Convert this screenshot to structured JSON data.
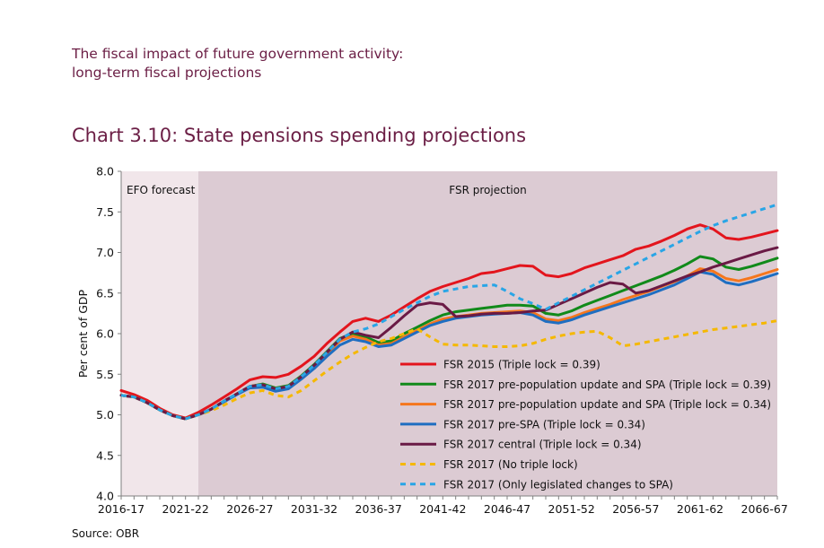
{
  "header": {
    "line1": "The fiscal impact of future government activity:",
    "line2": "long-term fiscal projections"
  },
  "source": "Source: OBR",
  "chart_data": {
    "type": "line",
    "title": "Chart 3.10: State pensions spending projections",
    "xlabel": "",
    "ylabel": "Per cent of GDP",
    "ylim": [
      4.0,
      8.0
    ],
    "yticks": [
      "4.0",
      "4.5",
      "5.0",
      "5.5",
      "6.0",
      "6.5",
      "7.0",
      "7.5",
      "8.0"
    ],
    "xticks": [
      "2016-17",
      "2021-22",
      "2026-27",
      "2031-32",
      "2036-37",
      "2041-42",
      "2046-47",
      "2051-52",
      "2056-57",
      "2061-62",
      "2066-67"
    ],
    "x_years": [
      2016,
      2017,
      2018,
      2019,
      2020,
      2021,
      2022,
      2023,
      2024,
      2025,
      2026,
      2027,
      2028,
      2029,
      2030,
      2031,
      2032,
      2033,
      2034,
      2035,
      2036,
      2037,
      2038,
      2039,
      2040,
      2041,
      2042,
      2043,
      2044,
      2045,
      2046,
      2047,
      2048,
      2049,
      2050,
      2051,
      2052,
      2053,
      2054,
      2055,
      2056,
      2057,
      2058,
      2059,
      2060,
      2061,
      2062,
      2063,
      2064,
      2065,
      2066,
      2067
    ],
    "regions": [
      {
        "label": "EFO forecast",
        "from": 2016,
        "to": 2022,
        "color": "#f1e6ea"
      },
      {
        "label": "FSR projection",
        "from": 2022,
        "to": 2067,
        "color": "#dccbd3"
      }
    ],
    "grid": false,
    "legend_position": "bottom-right",
    "series": [
      {
        "name": "FSR 2015 (Triple lock = 0.39)",
        "color": "#e3151d",
        "dash": false,
        "values": [
          5.3,
          5.25,
          5.18,
          5.08,
          5.0,
          4.96,
          5.03,
          5.12,
          5.22,
          5.32,
          5.43,
          5.47,
          5.46,
          5.5,
          5.6,
          5.72,
          5.88,
          6.02,
          6.15,
          6.19,
          6.15,
          6.23,
          6.33,
          6.43,
          6.52,
          6.58,
          6.63,
          6.68,
          6.74,
          6.76,
          6.8,
          6.84,
          6.83,
          6.72,
          6.7,
          6.74,
          6.81,
          6.86,
          6.91,
          6.96,
          7.04,
          7.08,
          7.14,
          7.21,
          7.29,
          7.34,
          7.29,
          7.18,
          7.16,
          7.19,
          7.23,
          7.27
        ]
      },
      {
        "name": "FSR 2017 pre-population update and SPA (Triple lock = 0.39)",
        "color": "#118a1a",
        "dash": false,
        "values": [
          5.24,
          5.22,
          5.15,
          5.06,
          4.99,
          4.95,
          5.0,
          5.07,
          5.17,
          5.26,
          5.35,
          5.38,
          5.33,
          5.36,
          5.48,
          5.62,
          5.78,
          5.94,
          6.0,
          5.96,
          5.89,
          5.91,
          6.0,
          6.08,
          6.16,
          6.23,
          6.27,
          6.29,
          6.31,
          6.33,
          6.35,
          6.35,
          6.34,
          6.25,
          6.23,
          6.28,
          6.35,
          6.41,
          6.47,
          6.53,
          6.59,
          6.65,
          6.71,
          6.78,
          6.86,
          6.95,
          6.92,
          6.82,
          6.79,
          6.83,
          6.88,
          6.93
        ]
      },
      {
        "name": "FSR 2017 pre-population update and SPA (Triple lock = 0.34)",
        "color": "#f5761c",
        "dash": false,
        "values": [
          5.24,
          5.22,
          5.15,
          5.06,
          4.99,
          4.95,
          5.0,
          5.07,
          5.17,
          5.26,
          5.35,
          5.37,
          5.32,
          5.35,
          5.47,
          5.6,
          5.75,
          5.91,
          5.97,
          5.93,
          5.86,
          5.88,
          5.96,
          6.04,
          6.12,
          6.18,
          6.21,
          6.23,
          6.25,
          6.26,
          6.27,
          6.28,
          6.26,
          6.18,
          6.16,
          6.2,
          6.26,
          6.31,
          6.36,
          6.42,
          6.47,
          6.52,
          6.58,
          6.64,
          6.71,
          6.8,
          6.77,
          6.68,
          6.65,
          6.69,
          6.74,
          6.79
        ]
      },
      {
        "name": "FSR 2017 pre-SPA (Triple lock = 0.34)",
        "color": "#1f6ec1",
        "dash": false,
        "values": [
          5.24,
          5.22,
          5.15,
          5.06,
          4.99,
          4.95,
          5.0,
          5.07,
          5.16,
          5.25,
          5.33,
          5.34,
          5.29,
          5.32,
          5.44,
          5.57,
          5.72,
          5.86,
          5.93,
          5.9,
          5.84,
          5.86,
          5.94,
          6.02,
          6.1,
          6.15,
          6.19,
          6.21,
          6.23,
          6.24,
          6.25,
          6.26,
          6.23,
          6.15,
          6.13,
          6.17,
          6.23,
          6.28,
          6.33,
          6.38,
          6.43,
          6.48,
          6.54,
          6.6,
          6.68,
          6.76,
          6.73,
          6.63,
          6.6,
          6.64,
          6.69,
          6.74
        ]
      },
      {
        "name": "FSR 2017 central (Triple lock = 0.34)",
        "color": "#6a1a45",
        "dash": false,
        "values": [
          5.24,
          5.22,
          5.15,
          5.06,
          4.99,
          4.95,
          5.0,
          5.07,
          5.17,
          5.26,
          5.35,
          5.37,
          5.32,
          5.35,
          5.47,
          5.61,
          5.77,
          5.93,
          6.02,
          5.98,
          5.95,
          6.08,
          6.22,
          6.35,
          6.38,
          6.36,
          6.21,
          6.22,
          6.24,
          6.25,
          6.25,
          6.26,
          6.28,
          6.29,
          6.36,
          6.43,
          6.5,
          6.57,
          6.63,
          6.61,
          6.5,
          6.53,
          6.59,
          6.65,
          6.71,
          6.76,
          6.82,
          6.87,
          6.92,
          6.97,
          7.02,
          7.06
        ]
      },
      {
        "name": "FSR 2017 (No triple lock)",
        "color": "#f5b800",
        "dash": true,
        "values": [
          5.24,
          5.22,
          5.15,
          5.06,
          4.99,
          4.95,
          5.0,
          5.05,
          5.12,
          5.2,
          5.27,
          5.3,
          5.24,
          5.22,
          5.3,
          5.42,
          5.54,
          5.65,
          5.75,
          5.83,
          5.9,
          5.94,
          6.0,
          6.06,
          5.96,
          5.87,
          5.86,
          5.86,
          5.85,
          5.84,
          5.84,
          5.85,
          5.88,
          5.93,
          5.97,
          6.0,
          6.02,
          6.03,
          5.95,
          5.85,
          5.87,
          5.9,
          5.93,
          5.96,
          5.99,
          6.02,
          6.05,
          6.07,
          6.09,
          6.11,
          6.13,
          6.16
        ]
      },
      {
        "name": "FSR 2017 (Only legislated changes to SPA)",
        "color": "#29a5e6",
        "dash": true,
        "values": [
          5.24,
          5.22,
          5.15,
          5.06,
          4.99,
          4.95,
          5.0,
          5.07,
          5.17,
          5.26,
          5.35,
          5.37,
          5.32,
          5.35,
          5.47,
          5.61,
          5.77,
          5.93,
          6.02,
          6.06,
          6.12,
          6.21,
          6.3,
          6.38,
          6.46,
          6.52,
          6.55,
          6.58,
          6.59,
          6.6,
          6.52,
          6.43,
          6.37,
          6.3,
          6.38,
          6.46,
          6.54,
          6.62,
          6.7,
          6.78,
          6.86,
          6.94,
          7.02,
          7.1,
          7.18,
          7.26,
          7.33,
          7.39,
          7.44,
          7.49,
          7.54,
          7.59
        ]
      }
    ]
  }
}
